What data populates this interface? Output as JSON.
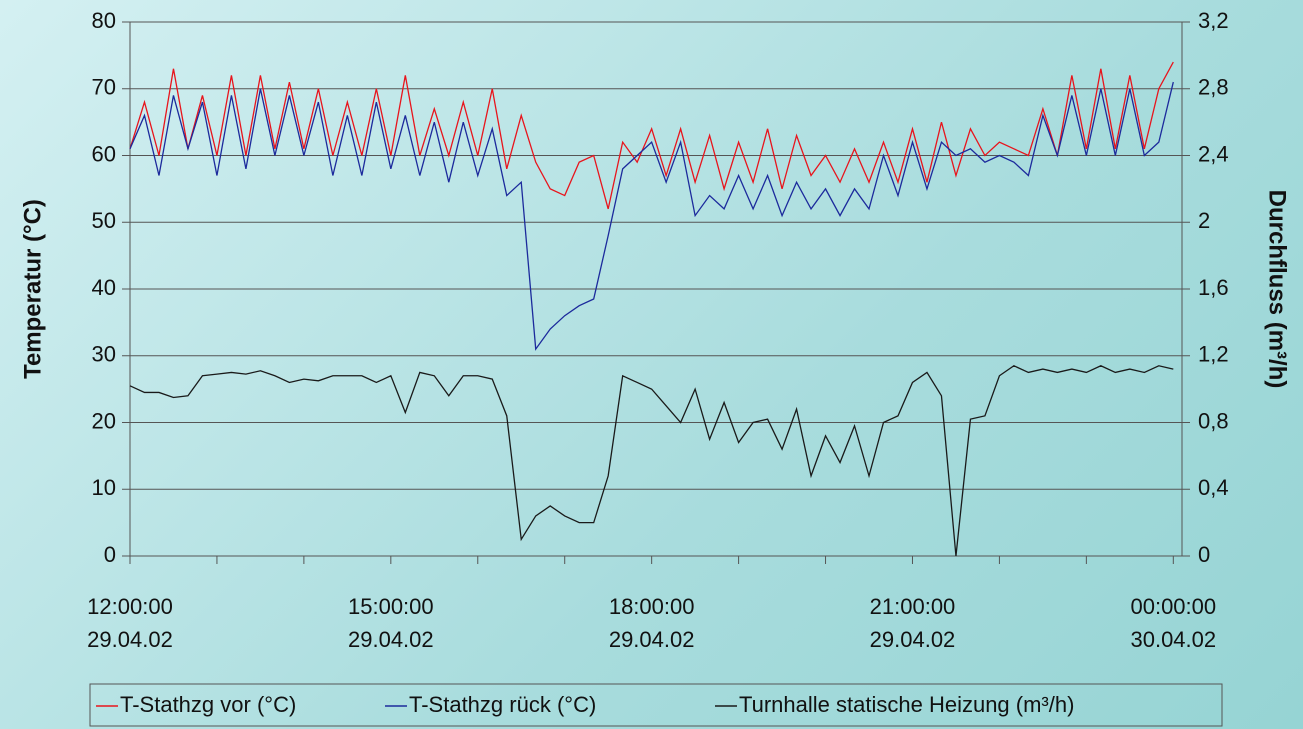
{
  "chart_data": {
    "type": "line",
    "y_label": "Temperatur (°C)",
    "y2_label": "Durchfluss (m³/h)",
    "x": [
      "2002-04-29T12:00:00",
      "2002-04-29T12:10:00",
      "2002-04-29T12:20:00",
      "2002-04-29T12:30:00",
      "2002-04-29T12:40:00",
      "2002-04-29T12:50:00",
      "2002-04-29T13:00:00",
      "2002-04-29T13:10:00",
      "2002-04-29T13:20:00",
      "2002-04-29T13:30:00",
      "2002-04-29T13:40:00",
      "2002-04-29T13:50:00",
      "2002-04-29T14:00:00",
      "2002-04-29T14:10:00",
      "2002-04-29T14:20:00",
      "2002-04-29T14:30:00",
      "2002-04-29T14:40:00",
      "2002-04-29T14:50:00",
      "2002-04-29T15:00:00",
      "2002-04-29T15:10:00",
      "2002-04-29T15:20:00",
      "2002-04-29T15:30:00",
      "2002-04-29T15:40:00",
      "2002-04-29T15:50:00",
      "2002-04-29T16:00:00",
      "2002-04-29T16:10:00",
      "2002-04-29T16:20:00",
      "2002-04-29T16:30:00",
      "2002-04-29T16:40:00",
      "2002-04-29T16:50:00",
      "2002-04-29T17:00:00",
      "2002-04-29T17:10:00",
      "2002-04-29T17:20:00",
      "2002-04-29T17:30:00",
      "2002-04-29T17:40:00",
      "2002-04-29T17:50:00",
      "2002-04-29T18:00:00",
      "2002-04-29T18:10:00",
      "2002-04-29T18:20:00",
      "2002-04-29T18:30:00",
      "2002-04-29T18:40:00",
      "2002-04-29T18:50:00",
      "2002-04-29T19:00:00",
      "2002-04-29T19:10:00",
      "2002-04-29T19:20:00",
      "2002-04-29T19:30:00",
      "2002-04-29T19:40:00",
      "2002-04-29T19:50:00",
      "2002-04-29T20:00:00",
      "2002-04-29T20:10:00",
      "2002-04-29T20:20:00",
      "2002-04-29T20:30:00",
      "2002-04-29T20:40:00",
      "2002-04-29T20:50:00",
      "2002-04-29T21:00:00",
      "2002-04-29T21:10:00",
      "2002-04-29T21:20:00",
      "2002-04-29T21:30:00",
      "2002-04-29T21:40:00",
      "2002-04-29T21:50:00",
      "2002-04-29T22:00:00",
      "2002-04-29T22:10:00",
      "2002-04-29T22:20:00",
      "2002-04-29T22:30:00",
      "2002-04-29T22:40:00",
      "2002-04-29T22:50:00",
      "2002-04-29T23:00:00",
      "2002-04-29T23:10:00",
      "2002-04-29T23:20:00",
      "2002-04-29T23:30:00",
      "2002-04-29T23:40:00",
      "2002-04-29T23:50:00",
      "2002-04-30T00:00:00"
    ],
    "series": [
      {
        "name": "T-Stathzg vor (°C)",
        "color": "#e8141c",
        "values": [
          61,
          68,
          60,
          73,
          61,
          69,
          60,
          72,
          60,
          72,
          61,
          71,
          61,
          70,
          60,
          68,
          60,
          70,
          60,
          72,
          60,
          67,
          60,
          68,
          60,
          70,
          58,
          66,
          59,
          55,
          54,
          59,
          60,
          52,
          62,
          59,
          64,
          57,
          64,
          56,
          63,
          55,
          62,
          56,
          64,
          55,
          63,
          57,
          60,
          56,
          61,
          56,
          62,
          56,
          64,
          56,
          65,
          57,
          64,
          60,
          62,
          61,
          60,
          67,
          60,
          72,
          61,
          73,
          61,
          72,
          61,
          70,
          74
        ]
      },
      {
        "name": "T-Stathzg rück (°C)",
        "color": "#1c2a9c",
        "values": [
          61,
          66,
          57,
          69,
          61,
          68,
          57,
          69,
          58,
          70,
          60,
          69,
          60,
          68,
          57,
          66,
          57,
          68,
          58,
          66,
          57,
          65,
          56,
          65,
          57,
          64,
          54,
          56,
          31,
          34,
          36,
          37.5,
          38.5,
          48,
          58,
          60,
          62,
          56,
          62,
          51,
          54,
          52,
          57,
          52,
          57,
          51,
          56,
          52,
          55,
          51,
          55,
          52,
          60,
          54,
          62,
          55,
          62,
          60,
          61,
          59,
          60,
          59,
          57,
          66,
          60,
          69,
          60,
          70,
          60,
          70,
          60,
          62,
          71
        ]
      },
      {
        "name": "Turnhalle statische Heizung (m³/h)",
        "color": "#1a1a1a",
        "axis": "y2",
        "values": [
          1.02,
          0.98,
          0.98,
          0.95,
          0.96,
          1.08,
          1.09,
          1.1,
          1.09,
          1.11,
          1.08,
          1.04,
          1.06,
          1.05,
          1.08,
          1.08,
          1.08,
          1.04,
          1.08,
          0.86,
          1.1,
          1.08,
          0.96,
          1.08,
          1.08,
          1.06,
          0.84,
          0.1,
          0.24,
          0.3,
          0.24,
          0.2,
          0.2,
          0.48,
          1.08,
          1.04,
          1.0,
          0.9,
          0.8,
          1.0,
          0.7,
          0.92,
          0.68,
          0.8,
          0.82,
          0.64,
          0.88,
          0.48,
          0.72,
          0.56,
          0.78,
          0.48,
          0.8,
          0.84,
          1.04,
          1.1,
          0.96,
          0,
          0.82,
          0.84,
          1.08,
          1.14,
          1.1,
          1.12,
          1.1,
          1.12,
          1.1,
          1.14,
          1.1,
          1.12,
          1.1,
          1.14,
          1.12
        ]
      }
    ],
    "xlim": [
      "2002-04-29T12:00:00",
      "2002-04-30T00:06:00"
    ],
    "xticks": [
      {
        "value": "2002-04-29T12:00:00",
        "label": [
          "12:00:00",
          "29.04.02"
        ]
      },
      {
        "value": "2002-04-29T15:00:00",
        "label": [
          "15:00:00",
          "29.04.02"
        ]
      },
      {
        "value": "2002-04-29T18:00:00",
        "label": [
          "18:00:00",
          "29.04.02"
        ]
      },
      {
        "value": "2002-04-29T21:00:00",
        "label": [
          "21:00:00",
          "29.04.02"
        ]
      },
      {
        "value": "2002-04-30T00:00:00",
        "label": [
          "00:00:00",
          "30.04.02"
        ]
      }
    ],
    "xminorticks": [
      "2002-04-29T13:00:00",
      "2002-04-29T14:00:00",
      "2002-04-29T16:00:00",
      "2002-04-29T17:00:00",
      "2002-04-29T19:00:00",
      "2002-04-29T20:00:00",
      "2002-04-29T22:00:00",
      "2002-04-29T23:00:00"
    ],
    "ylim": [
      0,
      80
    ],
    "yticks": [
      0,
      10,
      20,
      30,
      40,
      50,
      60,
      70,
      80
    ],
    "y2lim": [
      0,
      3.2
    ],
    "y2ticks": [
      0,
      {
        "value": 0.4,
        "label": "0,4"
      },
      {
        "value": 0.8,
        "label": "0,8"
      },
      {
        "value": 1.2,
        "label": "1,2"
      },
      {
        "value": 1.6,
        "label": "1,6"
      },
      2,
      {
        "value": 2.4,
        "label": "2,4"
      },
      {
        "value": 2.8,
        "label": "2,8"
      },
      {
        "value": 3.2,
        "label": "3,2"
      }
    ],
    "grid": true,
    "legend": "bottom"
  }
}
